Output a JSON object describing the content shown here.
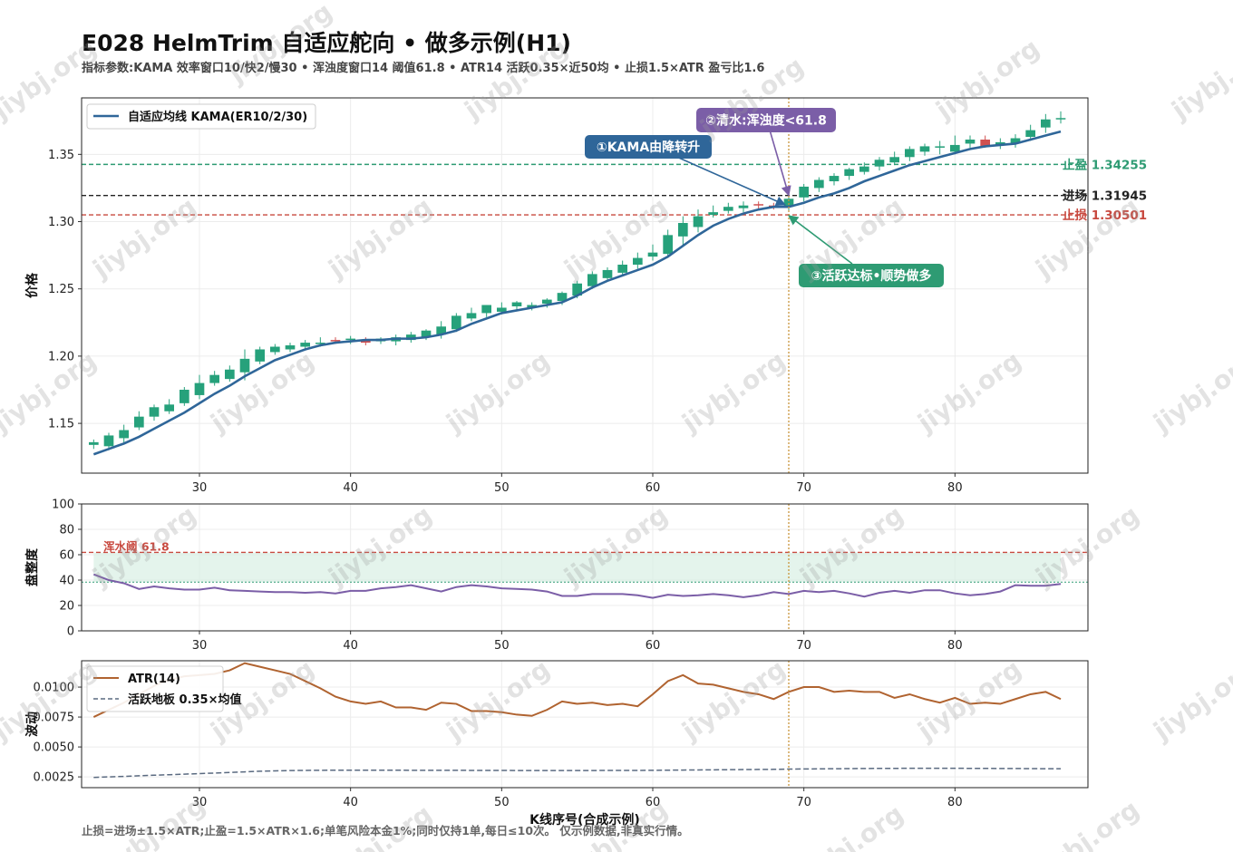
{
  "header": {
    "title": "E028 HelmTrim 自适应舵向 • 做多示例(H1)",
    "subtitle": "指标参数:KAMA 效率窗口10/快2/慢30 • 浑浊度窗口14 阈值61.8 • ATR14 活跃0.35×近50均 • 止损1.5×ATR 盈亏比1.6"
  },
  "footer": "止损=进场±1.5×ATR;止盈=1.5×ATR×1.6;单笔风险本金1%;同时仅持1单,每日≤10次。 仅示例数据,非真实行情。",
  "watermark": "jiybj.org",
  "colors": {
    "up": "#26a17b",
    "down": "#d05050",
    "kama": "#2f6699",
    "chop": "#7b5ea7",
    "atr": "#b06330",
    "floor": "#5a6a80",
    "tp": "#2e9b73",
    "sl": "#c8493f",
    "entry": "#222222",
    "signal": "#c9953b"
  },
  "chart_data": [
    {
      "type": "candlestick",
      "name": "price",
      "ylabel": "价格",
      "xlim": [
        22.2,
        88.8
      ],
      "ylim": [
        1.113,
        1.392
      ],
      "xticks": [
        30,
        40,
        50,
        60,
        70,
        80
      ],
      "yticks": [
        1.15,
        1.2,
        1.25,
        1.3,
        1.35
      ],
      "ytick_labels": [
        "1.15",
        "1.20",
        "1.25",
        "1.30",
        "1.35"
      ],
      "grid": true,
      "legend": {
        "position": "top-left",
        "entries": [
          "自适应均线 KAMA(ER10/2/30)"
        ]
      },
      "x": [
        23,
        24,
        25,
        26,
        27,
        28,
        29,
        30,
        31,
        32,
        33,
        34,
        35,
        36,
        37,
        38,
        39,
        40,
        41,
        42,
        43,
        44,
        45,
        46,
        47,
        48,
        49,
        50,
        51,
        52,
        53,
        54,
        55,
        56,
        57,
        58,
        59,
        60,
        61,
        62,
        63,
        64,
        65,
        66,
        67,
        68,
        69,
        70,
        71,
        72,
        73,
        74,
        75,
        76,
        77,
        78,
        79,
        80,
        81,
        82,
        83,
        84,
        85,
        86,
        87
      ],
      "open": [
        1.134,
        1.133,
        1.139,
        1.147,
        1.155,
        1.159,
        1.165,
        1.171,
        1.18,
        1.183,
        1.188,
        1.196,
        1.203,
        1.205,
        1.207,
        1.21,
        1.212,
        1.212,
        1.212,
        1.211,
        1.211,
        1.212,
        1.214,
        1.216,
        1.22,
        1.228,
        1.232,
        1.233,
        1.237,
        1.236,
        1.239,
        1.241,
        1.245,
        1.252,
        1.258,
        1.262,
        1.268,
        1.274,
        1.276,
        1.289,
        1.296,
        1.305,
        1.308,
        1.31,
        1.313,
        1.312,
        1.311,
        1.318,
        1.325,
        1.33,
        1.334,
        1.337,
        1.341,
        1.344,
        1.348,
        1.352,
        1.355,
        1.352,
        1.358,
        1.361,
        1.357,
        1.358,
        1.363,
        1.37,
        1.377
      ],
      "high": [
        1.138,
        1.143,
        1.149,
        1.159,
        1.164,
        1.168,
        1.177,
        1.186,
        1.189,
        1.193,
        1.205,
        1.207,
        1.209,
        1.21,
        1.212,
        1.214,
        1.214,
        1.215,
        1.214,
        1.214,
        1.216,
        1.218,
        1.22,
        1.226,
        1.232,
        1.236,
        1.238,
        1.24,
        1.241,
        1.24,
        1.243,
        1.248,
        1.256,
        1.263,
        1.266,
        1.271,
        1.277,
        1.283,
        1.294,
        1.304,
        1.309,
        1.312,
        1.314,
        1.315,
        1.315,
        1.314,
        1.32,
        1.328,
        1.333,
        1.336,
        1.34,
        1.344,
        1.348,
        1.352,
        1.356,
        1.358,
        1.36,
        1.364,
        1.364,
        1.364,
        1.362,
        1.365,
        1.372,
        1.38,
        1.382
      ],
      "low": [
        1.131,
        1.13,
        1.135,
        1.145,
        1.152,
        1.157,
        1.163,
        1.168,
        1.178,
        1.181,
        1.182,
        1.194,
        1.201,
        1.203,
        1.205,
        1.207,
        1.209,
        1.209,
        1.208,
        1.209,
        1.208,
        1.21,
        1.212,
        1.213,
        1.218,
        1.226,
        1.229,
        1.231,
        1.234,
        1.234,
        1.236,
        1.238,
        1.243,
        1.25,
        1.256,
        1.26,
        1.265,
        1.271,
        1.273,
        1.282,
        1.292,
        1.303,
        1.306,
        1.307,
        1.309,
        1.309,
        1.308,
        1.315,
        1.322,
        1.327,
        1.331,
        1.335,
        1.338,
        1.342,
        1.345,
        1.349,
        1.35,
        1.35,
        1.355,
        1.355,
        1.354,
        1.355,
        1.36,
        1.366,
        1.373
      ],
      "close": [
        1.136,
        1.141,
        1.145,
        1.155,
        1.162,
        1.164,
        1.175,
        1.18,
        1.186,
        1.19,
        1.198,
        1.205,
        1.207,
        1.208,
        1.21,
        1.21,
        1.211,
        1.213,
        1.21,
        1.213,
        1.214,
        1.216,
        1.219,
        1.222,
        1.23,
        1.232,
        1.238,
        1.236,
        1.24,
        1.238,
        1.242,
        1.247,
        1.254,
        1.261,
        1.264,
        1.268,
        1.273,
        1.277,
        1.29,
        1.299,
        1.304,
        1.307,
        1.311,
        1.312,
        1.312,
        1.311,
        1.317,
        1.326,
        1.331,
        1.334,
        1.339,
        1.341,
        1.346,
        1.348,
        1.354,
        1.356,
        1.356,
        1.357,
        1.361,
        1.356,
        1.359,
        1.362,
        1.368,
        1.376,
        1.377
      ],
      "kama": [
        1.127,
        1.131,
        1.135,
        1.14,
        1.146,
        1.152,
        1.158,
        1.165,
        1.172,
        1.178,
        1.185,
        1.191,
        1.197,
        1.201,
        1.205,
        1.208,
        1.21,
        1.211,
        1.212,
        1.212,
        1.213,
        1.213,
        1.214,
        1.216,
        1.219,
        1.224,
        1.228,
        1.232,
        1.234,
        1.236,
        1.238,
        1.24,
        1.245,
        1.251,
        1.256,
        1.26,
        1.264,
        1.268,
        1.274,
        1.282,
        1.29,
        1.297,
        1.302,
        1.306,
        1.309,
        1.311,
        1.311,
        1.314,
        1.318,
        1.321,
        1.325,
        1.33,
        1.334,
        1.338,
        1.342,
        1.345,
        1.348,
        1.351,
        1.354,
        1.356,
        1.357,
        1.358,
        1.361,
        1.364,
        1.367
      ],
      "levels": [
        {
          "name": "take-profit",
          "label": "止盈 1.34255",
          "value": 1.34255
        },
        {
          "name": "entry",
          "label": "进场 1.31945",
          "value": 1.31945
        },
        {
          "name": "stop-loss",
          "label": "止损 1.30501",
          "value": 1.30501
        }
      ],
      "signal_x": 69,
      "annotations": [
        {
          "name": "kama-turn",
          "text": "①KAMA由降转升",
          "x": 69,
          "y": 1.3125
        },
        {
          "name": "clear-water",
          "text": "②清水:浑浊度<61.8",
          "x": 69,
          "y": 1.3155
        },
        {
          "name": "active",
          "text": "③活跃达标•顺势做多",
          "x": 69,
          "y": 1.3085
        }
      ]
    },
    {
      "type": "line",
      "name": "choppiness",
      "ylabel": "盘整度",
      "xlim": [
        22.2,
        88.8
      ],
      "ylim": [
        0,
        100
      ],
      "xticks": [
        30,
        40,
        50,
        60,
        70,
        80
      ],
      "yticks": [
        0,
        20,
        40,
        60,
        80,
        100
      ],
      "ytick_labels": [
        "0",
        "20",
        "40",
        "60",
        "80",
        "100"
      ],
      "threshold": {
        "label": "浑水阈 61.8",
        "value": 61.8
      },
      "mean_line": 38.4,
      "x": [
        23,
        24,
        25,
        26,
        27,
        28,
        29,
        30,
        31,
        32,
        33,
        34,
        35,
        36,
        37,
        38,
        39,
        40,
        41,
        42,
        43,
        44,
        45,
        46,
        47,
        48,
        49,
        50,
        51,
        52,
        53,
        54,
        55,
        56,
        57,
        58,
        59,
        60,
        61,
        62,
        63,
        64,
        65,
        66,
        67,
        68,
        69,
        70,
        71,
        72,
        73,
        74,
        75,
        76,
        77,
        78,
        79,
        80,
        81,
        82,
        83,
        84,
        85,
        86,
        87
      ],
      "values": [
        44.5,
        40,
        37.5,
        33,
        35,
        33.5,
        32.5,
        32.5,
        34,
        32,
        31.5,
        31,
        30.5,
        30.5,
        30,
        30.5,
        29.5,
        31.5,
        31.5,
        33.5,
        34.5,
        36,
        33.5,
        31,
        34.5,
        36,
        35,
        33.5,
        33,
        32.5,
        31,
        27.5,
        27.5,
        29,
        29,
        29,
        28,
        26,
        28.5,
        27.5,
        28,
        29,
        28,
        26.5,
        28,
        30.5,
        29,
        31.5,
        30.5,
        31.5,
        29.5,
        27,
        30,
        31.5,
        30,
        32,
        32,
        29.5,
        28,
        29,
        31,
        36,
        35.5,
        35.5,
        37
      ]
    },
    {
      "type": "line",
      "name": "atr",
      "ylabel": "波动",
      "xlabel": "K线序号(合成示例)",
      "xlim": [
        22.2,
        88.8
      ],
      "ylim": [
        0.0016,
        0.0122
      ],
      "xticks": [
        30,
        40,
        50,
        60,
        70,
        80
      ],
      "yticks": [
        0.0025,
        0.005,
        0.0075,
        0.01
      ],
      "ytick_labels": [
        "0.0025",
        "0.0050",
        "0.0075",
        "0.0100"
      ],
      "legend": {
        "position": "top-left",
        "entries": [
          "ATR(14)",
          "活跃地板 0.35×均值"
        ]
      },
      "series": [
        {
          "name": "ATR(14)",
          "x": [
            23,
            24,
            25,
            26,
            27,
            28,
            29,
            30,
            31,
            32,
            33,
            34,
            35,
            36,
            37,
            38,
            39,
            40,
            41,
            42,
            43,
            44,
            45,
            46,
            47,
            48,
            49,
            50,
            51,
            52,
            53,
            54,
            55,
            56,
            57,
            58,
            59,
            60,
            61,
            62,
            63,
            64,
            65,
            66,
            67,
            68,
            69,
            70,
            71,
            72,
            73,
            74,
            75,
            76,
            77,
            78,
            79,
            80,
            81,
            82,
            83,
            84,
            85,
            86,
            87
          ],
          "values": [
            0.0075,
            0.0081,
            0.0087,
            0.0094,
            0.0101,
            0.0106,
            0.0109,
            0.011,
            0.0111,
            0.0114,
            0.012,
            0.0117,
            0.0114,
            0.0111,
            0.0105,
            0.0099,
            0.0092,
            0.0088,
            0.0086,
            0.0088,
            0.0083,
            0.0083,
            0.0081,
            0.0087,
            0.0086,
            0.008,
            0.008,
            0.0079,
            0.0077,
            0.0076,
            0.0081,
            0.0088,
            0.0086,
            0.0087,
            0.0085,
            0.0086,
            0.0084,
            0.0094,
            0.0105,
            0.011,
            0.0103,
            0.0102,
            0.0099,
            0.0096,
            0.0094,
            0.009,
            0.0096,
            0.01,
            0.01,
            0.0096,
            0.0097,
            0.0096,
            0.0096,
            0.0091,
            0.0094,
            0.009,
            0.0087,
            0.0091,
            0.0086,
            0.0087,
            0.0086,
            0.009,
            0.0094,
            0.0096,
            0.009
          ]
        },
        {
          "name": "活跃地板 0.35×均值",
          "x": [
            23,
            24,
            25,
            26,
            27,
            28,
            29,
            30,
            31,
            32,
            33,
            34,
            35,
            36,
            37,
            38,
            39,
            40,
            41,
            42,
            43,
            44,
            45,
            46,
            47,
            48,
            49,
            50,
            51,
            52,
            53,
            54,
            55,
            56,
            57,
            58,
            59,
            60,
            61,
            62,
            63,
            64,
            65,
            66,
            67,
            68,
            69,
            70,
            71,
            72,
            73,
            74,
            75,
            76,
            77,
            78,
            79,
            80,
            81,
            82,
            83,
            84,
            85,
            86,
            87
          ],
          "values": [
            0.00245,
            0.0025,
            0.00254,
            0.00259,
            0.00264,
            0.00268,
            0.00273,
            0.00277,
            0.00282,
            0.00287,
            0.00292,
            0.00297,
            0.003,
            0.00303,
            0.00304,
            0.00305,
            0.00306,
            0.00306,
            0.00306,
            0.00306,
            0.00306,
            0.00305,
            0.00305,
            0.00305,
            0.00305,
            0.00304,
            0.00304,
            0.00304,
            0.00303,
            0.00303,
            0.00303,
            0.00303,
            0.00303,
            0.00303,
            0.00304,
            0.00304,
            0.00304,
            0.00305,
            0.00306,
            0.00307,
            0.00308,
            0.00309,
            0.0031,
            0.00311,
            0.00312,
            0.00313,
            0.00315,
            0.00316,
            0.00317,
            0.00318,
            0.00319,
            0.0032,
            0.00321,
            0.00321,
            0.00322,
            0.00322,
            0.00322,
            0.00322,
            0.00321,
            0.00321,
            0.0032,
            0.0032,
            0.00319,
            0.00318,
            0.00318
          ]
        }
      ]
    }
  ]
}
